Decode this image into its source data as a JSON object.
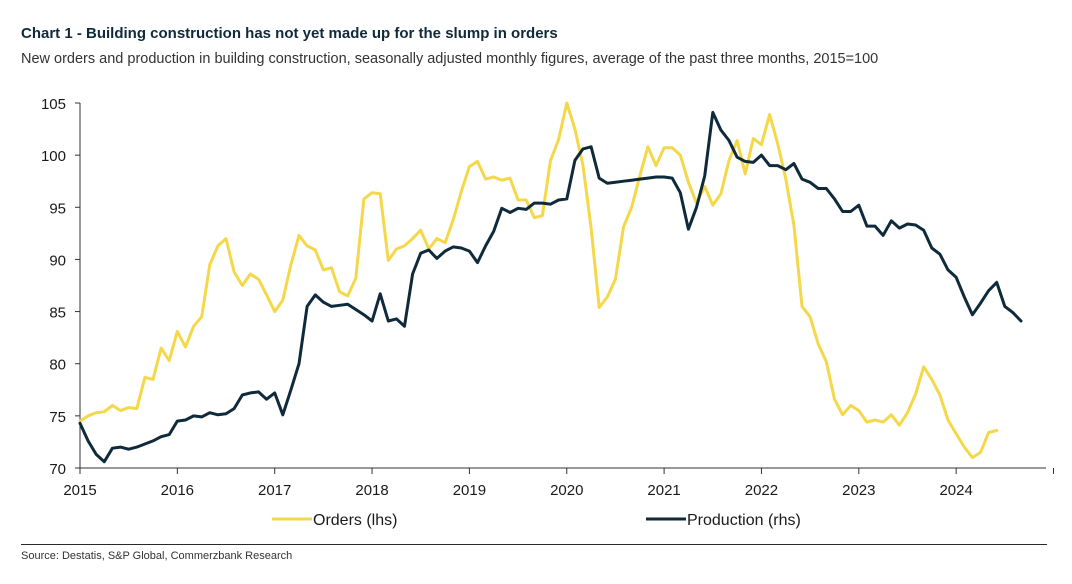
{
  "title": "Chart 1 - Building construction has not yet made up for the slump in orders",
  "subtitle": "New orders and production in building construction, seasonally adjusted monthly figures, average of the past three months, 2015=100",
  "source": "Source: Destatis, S&P Global, Commerzbank Research",
  "colors": {
    "orders": "#f5d84a",
    "production": "#0f2a3a",
    "axis": "#333333"
  },
  "chart_data": {
    "type": "line",
    "title": "Chart 1 - Building construction has not yet made up for the slump in orders",
    "xlabel": "",
    "ylabel": "",
    "x_start": "2015-01",
    "x_ticks": [
      "2015",
      "2016",
      "2017",
      "2018",
      "2019",
      "2020",
      "2021",
      "2022",
      "2023",
      "2024"
    ],
    "ylim": [
      70,
      105
    ],
    "y_ticks": [
      "70",
      "75",
      "80",
      "85",
      "90",
      "95",
      "100",
      "105"
    ],
    "grid": false,
    "legend": "bottom",
    "series": [
      {
        "name": "Orders (lhs)",
        "color": "#f5d84a",
        "values": [
          74.5,
          75.0,
          75.3,
          75.4,
          76.0,
          75.5,
          75.8,
          75.7,
          78.7,
          78.5,
          81.5,
          80.3,
          83.1,
          81.6,
          83.6,
          84.5,
          89.5,
          91.3,
          92.0,
          88.8,
          87.5,
          88.6,
          88.1,
          86.6,
          85.0,
          86.1,
          89.5,
          92.3,
          91.3,
          90.9,
          89.0,
          89.2,
          86.9,
          86.5,
          88.2,
          95.8,
          96.4,
          96.3,
          89.9,
          91.0,
          91.3,
          92.0,
          92.8,
          91.0,
          92.0,
          91.6,
          93.8,
          96.5,
          98.9,
          99.4,
          97.7,
          97.9,
          97.6,
          97.8,
          95.7,
          95.7,
          94.0,
          94.2,
          99.5,
          101.5,
          105.0,
          102.5,
          99.0,
          93.0,
          85.4,
          86.4,
          88.1,
          93.1,
          95.0,
          98.0,
          100.8,
          99.0,
          100.7,
          100.7,
          100.0,
          97.4,
          95.4,
          97.0,
          95.2,
          96.3,
          99.5,
          101.4,
          98.2,
          101.6,
          101.0,
          103.9,
          101.1,
          97.7,
          93.3,
          85.5,
          84.5,
          81.9,
          80.2,
          76.6,
          75.1,
          76.0,
          75.5,
          74.4,
          74.6,
          74.4,
          75.1,
          74.1,
          75.3,
          77.1,
          79.7,
          78.5,
          77.0,
          74.6,
          73.3,
          72.0,
          71.0,
          71.5,
          73.4,
          73.6
        ]
      },
      {
        "name": "Production (rhs)",
        "color": "#0f2a3a",
        "values": [
          74.3,
          72.6,
          71.3,
          70.6,
          71.9,
          72.0,
          71.8,
          72.0,
          72.3,
          72.6,
          73.0,
          73.2,
          74.5,
          74.6,
          75.0,
          74.9,
          75.3,
          75.1,
          75.2,
          75.7,
          77.0,
          77.2,
          77.3,
          76.6,
          77.2,
          75.1,
          77.5,
          80.0,
          85.5,
          86.6,
          85.9,
          85.5,
          85.6,
          85.7,
          85.2,
          84.7,
          84.1,
          86.7,
          84.1,
          84.3,
          83.6,
          88.6,
          90.6,
          90.9,
          90.1,
          90.8,
          91.2,
          91.1,
          90.8,
          89.7,
          91.3,
          92.7,
          94.9,
          94.5,
          94.9,
          94.8,
          95.4,
          95.4,
          95.3,
          95.7,
          95.8,
          99.5,
          100.6,
          100.8,
          97.8,
          97.3,
          97.4,
          97.5,
          97.6,
          97.7,
          97.8,
          97.9,
          97.9,
          97.8,
          96.4,
          92.9,
          95.0,
          98.0,
          104.1,
          102.4,
          101.4,
          99.8,
          99.4,
          99.3,
          100.0,
          99.0,
          99.0,
          98.6,
          99.2,
          97.7,
          97.4,
          96.8,
          96.8,
          95.8,
          94.6,
          94.6,
          95.2,
          93.2,
          93.2,
          92.3,
          93.7,
          93.0,
          93.4,
          93.3,
          92.8,
          91.1,
          90.5,
          89.0,
          88.3,
          86.4,
          84.7,
          85.8,
          87.0,
          87.8,
          85.5,
          84.9,
          84.1
        ]
      }
    ]
  }
}
